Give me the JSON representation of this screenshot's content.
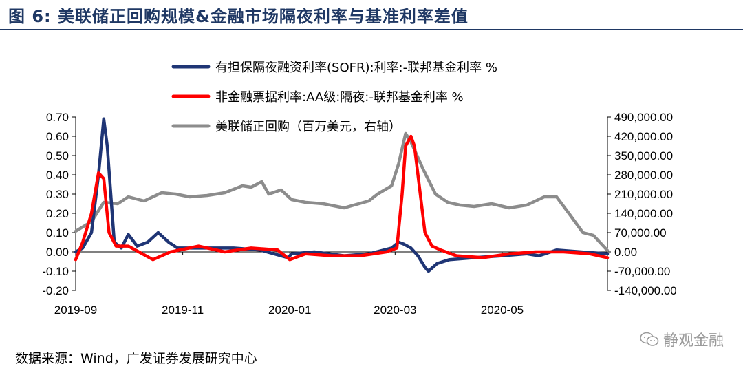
{
  "figure": {
    "title": "图 6:  美联储正回购规模&金融市场隔夜利率与基准利率差值",
    "source": "数据来源：Wind，广发证券发展研究中心",
    "watermark": "静观金融",
    "watermark_icon": "wechat-icon"
  },
  "chart_data": {
    "type": "line",
    "title": "",
    "xlabel": "",
    "ylabel": "",
    "x_range": [
      "2019-09-01",
      "2020-06-30"
    ],
    "x_ticks": [
      "2019-09",
      "2019-11",
      "2020-01",
      "2020-03",
      "2020-05"
    ],
    "y_left": {
      "ylim": [
        -0.2,
        0.7
      ],
      "ticks": [
        "0.70",
        "0.60",
        "0.50",
        "0.40",
        "0.30",
        "0.20",
        "0.10",
        "0.00",
        "-0.10",
        "-0.20"
      ]
    },
    "y_right": {
      "ylim": [
        -140000,
        490000
      ],
      "ticks": [
        "490,000.00",
        "420,000.00",
        "350,000.00",
        "280,000.00",
        "210,000.00",
        "140,000.00",
        "70,000.00",
        "0.00",
        "-70,000.00",
        "-140,000.00"
      ]
    },
    "grid": false,
    "legend_position": "top-center",
    "series": [
      {
        "name": "有担保隔夜融资利率(SOFR):利率:-联邦基金利率 %",
        "axis": "left",
        "color": "#1f3575",
        "x": [
          "2019-09-01",
          "2019-09-05",
          "2019-09-10",
          "2019-09-14",
          "2019-09-17",
          "2019-09-19",
          "2019-09-23",
          "2019-09-27",
          "2019-10-01",
          "2019-10-06",
          "2019-10-12",
          "2019-10-18",
          "2019-10-24",
          "2019-10-29",
          "2019-11-05",
          "2019-11-15",
          "2019-11-30",
          "2019-12-15",
          "2019-12-31",
          "2020-01-02",
          "2020-01-15",
          "2020-02-01",
          "2020-02-15",
          "2020-02-28",
          "2020-03-03",
          "2020-03-06",
          "2020-03-10",
          "2020-03-14",
          "2020-03-18",
          "2020-03-20",
          "2020-03-25",
          "2020-04-01",
          "2020-04-15",
          "2020-05-01",
          "2020-05-15",
          "2020-05-22",
          "2020-06-01",
          "2020-06-15",
          "2020-06-30"
        ],
        "y": [
          0.0,
          0.02,
          0.1,
          0.4,
          0.69,
          0.55,
          0.05,
          0.02,
          0.09,
          0.03,
          0.05,
          0.1,
          0.05,
          0.02,
          0.02,
          0.02,
          0.02,
          0.01,
          -0.03,
          -0.01,
          0.0,
          -0.02,
          -0.01,
          0.02,
          0.05,
          0.04,
          0.02,
          -0.02,
          -0.08,
          -0.1,
          -0.06,
          -0.04,
          -0.03,
          -0.02,
          -0.01,
          -0.02,
          0.01,
          0.0,
          -0.01
        ]
      },
      {
        "name": "非金融票据利率:AA级:隔夜:-联邦基金利率 %",
        "axis": "left",
        "color": "#ff0000",
        "x": [
          "2019-09-01",
          "2019-09-05",
          "2019-09-10",
          "2019-09-14",
          "2019-09-17",
          "2019-09-20",
          "2019-09-24",
          "2019-10-01",
          "2019-10-15",
          "2019-10-25",
          "2019-11-10",
          "2019-11-25",
          "2019-12-10",
          "2019-12-25",
          "2020-01-01",
          "2020-01-10",
          "2020-01-25",
          "2020-02-10",
          "2020-02-25",
          "2020-03-02",
          "2020-03-05",
          "2020-03-07",
          "2020-03-10",
          "2020-03-12",
          "2020-03-14",
          "2020-03-18",
          "2020-03-22",
          "2020-03-27",
          "2020-04-05",
          "2020-04-20",
          "2020-05-05",
          "2020-05-20",
          "2020-06-05",
          "2020-06-20",
          "2020-06-30"
        ],
        "y": [
          -0.04,
          0.05,
          0.2,
          0.41,
          0.38,
          0.1,
          0.03,
          0.03,
          -0.04,
          0.0,
          0.03,
          0.0,
          0.02,
          0.01,
          -0.04,
          -0.01,
          -0.02,
          -0.02,
          0.0,
          0.02,
          0.3,
          0.55,
          0.6,
          0.55,
          0.4,
          0.1,
          0.03,
          0.01,
          -0.02,
          -0.03,
          -0.01,
          0.0,
          0.0,
          -0.01,
          -0.03
        ]
      },
      {
        "name": "美联储正回购（百万美元，右轴）",
        "axis": "right",
        "color": "#8c8c8c",
        "x": [
          "2019-09-01",
          "2019-09-10",
          "2019-09-17",
          "2019-09-25",
          "2019-10-01",
          "2019-10-10",
          "2019-10-20",
          "2019-10-28",
          "2019-11-05",
          "2019-11-15",
          "2019-11-25",
          "2019-12-05",
          "2019-12-10",
          "2019-12-16",
          "2019-12-20",
          "2019-12-27",
          "2020-01-02",
          "2020-01-10",
          "2020-01-20",
          "2020-02-01",
          "2020-02-15",
          "2020-02-20",
          "2020-02-28",
          "2020-03-03",
          "2020-03-07",
          "2020-03-10",
          "2020-03-17",
          "2020-03-24",
          "2020-03-31",
          "2020-04-07",
          "2020-04-15",
          "2020-04-25",
          "2020-05-05",
          "2020-05-15",
          "2020-05-25",
          "2020-06-01",
          "2020-06-08",
          "2020-06-16",
          "2020-06-22",
          "2020-06-30"
        ],
        "y": [
          75000,
          110000,
          180000,
          175000,
          200000,
          185000,
          215000,
          210000,
          200000,
          205000,
          215000,
          240000,
          235000,
          255000,
          210000,
          225000,
          190000,
          180000,
          175000,
          160000,
          185000,
          210000,
          240000,
          320000,
          430000,
          400000,
          300000,
          210000,
          180000,
          170000,
          165000,
          175000,
          160000,
          170000,
          200000,
          200000,
          140000,
          70000,
          60000,
          5000
        ]
      }
    ]
  }
}
